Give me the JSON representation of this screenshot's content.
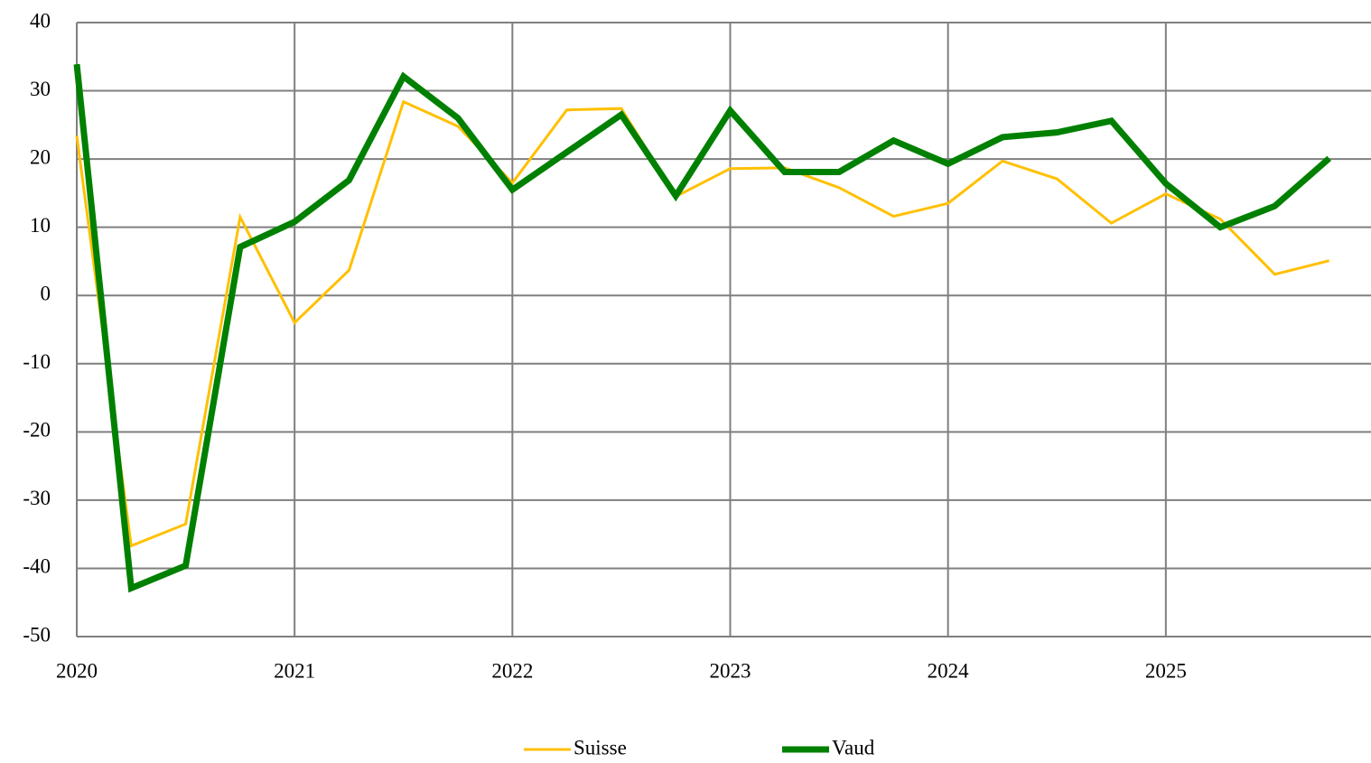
{
  "chart_data": {
    "type": "line",
    "x": [
      2020,
      2020.25,
      2020.5,
      2020.75,
      2021,
      2021.25,
      2021.5,
      2021.75,
      2022,
      2022.25,
      2022.5,
      2022.75,
      2023,
      2023.25,
      2023.5,
      2023.75,
      2024,
      2024.25,
      2024.5,
      2024.75,
      2025,
      2025.25,
      2025.5,
      2025.75
    ],
    "series": [
      {
        "name": "Suisse",
        "color": "#ffc000",
        "values": [
          23.4,
          -36.7,
          -33.5,
          11.5,
          -4,
          3.7,
          28.4,
          24.8,
          16.5,
          27.2,
          27.4,
          14.5,
          18.6,
          18.7,
          15.8,
          11.6,
          13.5,
          19.7,
          17.1,
          10.6,
          14.9,
          11.2,
          3.1,
          5.1
        ]
      },
      {
        "name": "Vaud",
        "color": "#008000",
        "values": [
          33.9,
          -42.9,
          -39.6,
          7.1,
          10.8,
          16.9,
          32.1,
          26,
          15.5,
          21,
          26.5,
          14.6,
          27.1,
          18.1,
          18.1,
          22.7,
          19.3,
          23.2,
          23.9,
          25.6,
          16.4,
          10,
          13.1,
          20.1
        ]
      }
    ],
    "xlim": [
      2020,
      2026
    ],
    "xticks": [
      2020,
      2021,
      2022,
      2023,
      2024,
      2025
    ],
    "ylim": [
      -50,
      40
    ],
    "yticks": [
      -50,
      -40,
      -30,
      -20,
      -10,
      0,
      10,
      20,
      30,
      40
    ],
    "grid": true,
    "legend": "bottom"
  }
}
